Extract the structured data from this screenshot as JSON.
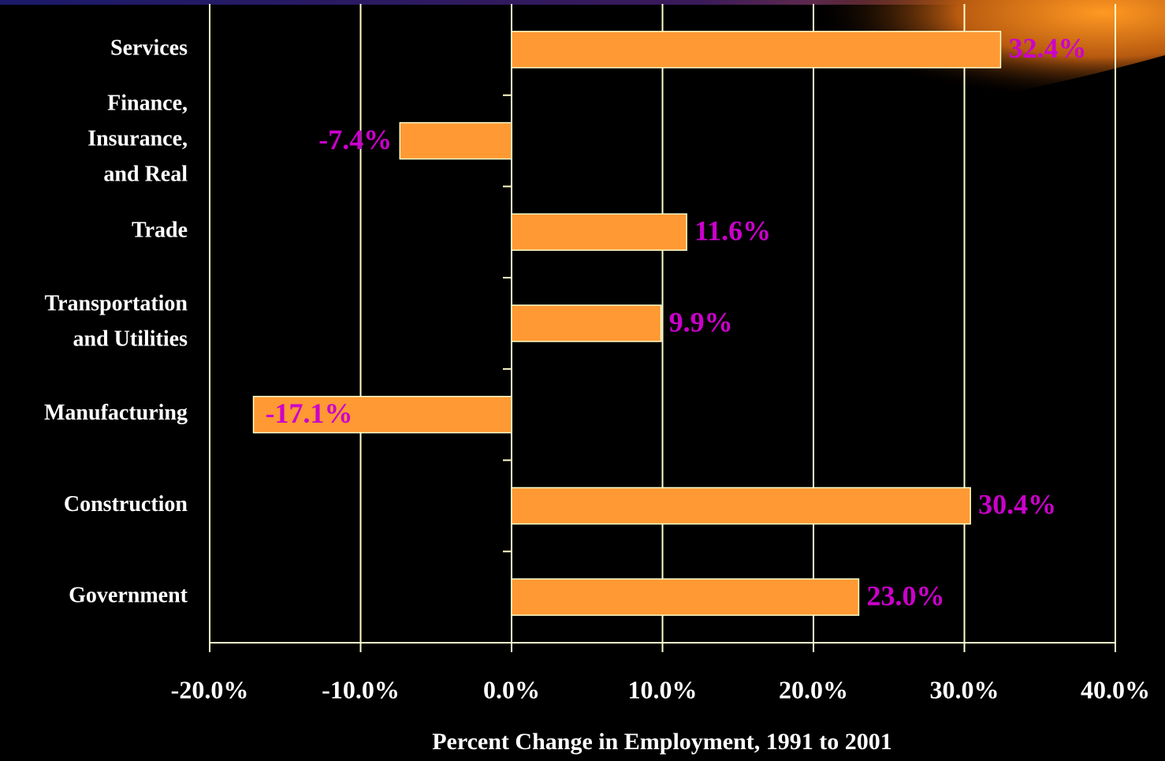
{
  "chart_data": {
    "type": "hbar",
    "x_label": "Percent Change in Employment, 1991 to 2001",
    "categories": [
      "Services",
      "Finance,\nInsurance,\nand Real",
      "Trade",
      "Transportation\nand Utilities",
      "Manufacturing",
      "Construction",
      "Government"
    ],
    "values": [
      32.4,
      -7.4,
      11.6,
      9.9,
      -17.1,
      30.4,
      23.0
    ],
    "value_labels": [
      "32.4%",
      "-7.4%",
      "11.6%",
      "9.9%",
      "-17.1%",
      "30.4%",
      "23.0%"
    ],
    "color": "#ff9933",
    "label_color": "#cc00cc",
    "xlim": [
      -20,
      40
    ],
    "xticks": [
      {
        "value": -20,
        "label": "-20.0%"
      },
      {
        "value": -10,
        "label": "-10.0%"
      },
      {
        "value": 0,
        "label": "0.0%"
      },
      {
        "value": 10,
        "label": "10.0%"
      },
      {
        "value": 20,
        "label": "20.0%"
      },
      {
        "value": 30,
        "label": "30.0%"
      },
      {
        "value": 40,
        "label": "40.0%"
      }
    ],
    "grid": true
  }
}
